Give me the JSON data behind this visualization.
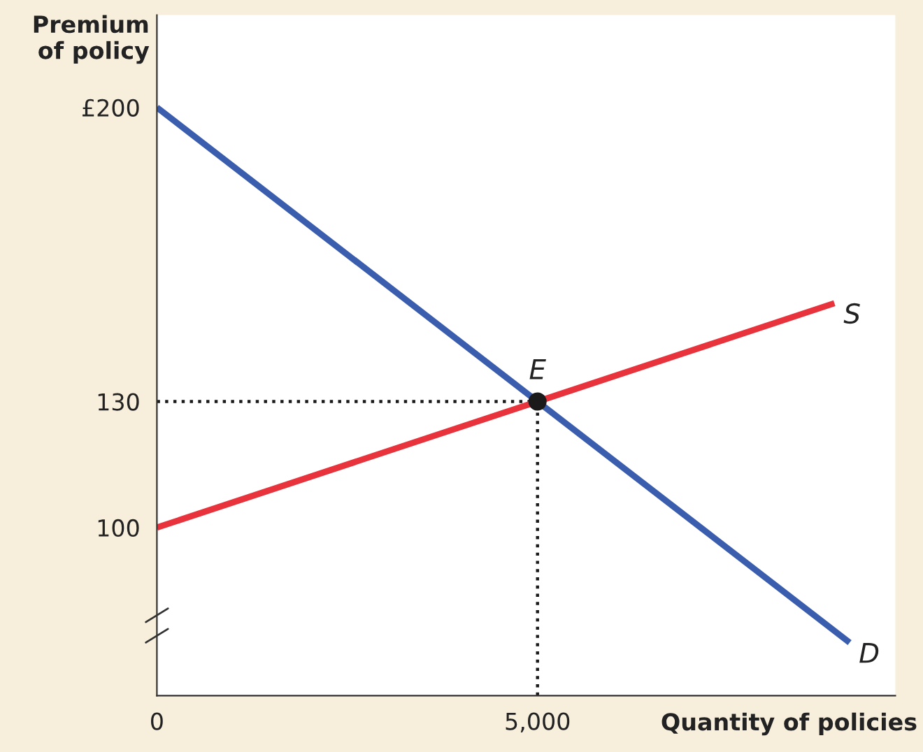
{
  "chart_data": {
    "type": "line",
    "xlabel": "Quantity of policies",
    "ylabel": "Premium\nof policy",
    "xlim": [
      0,
      9700
    ],
    "ylim": [
      60,
      222
    ],
    "xticks": [
      0,
      {
        "value": 5000,
        "label": "5,000"
      }
    ],
    "yticks": [
      100,
      130,
      {
        "value": 200,
        "label": "£200"
      }
    ],
    "series": [
      {
        "name": "D",
        "color": "#3a5dae",
        "x": [
          0,
          9100
        ],
        "values": [
          200,
          72.6
        ]
      },
      {
        "name": "S",
        "color": "#e8323c",
        "x": [
          0,
          8900
        ],
        "values": [
          100,
          153.4
        ]
      },
      {
        "name": "E",
        "type": "scatter",
        "color": "#1a1a1a",
        "x": [
          5000
        ],
        "values": [
          130
        ]
      }
    ],
    "ref_lines": [
      {
        "axis": "x",
        "value": 5000,
        "line_style": "dotted",
        "color": "#1a1a1a"
      },
      {
        "axis": "y",
        "value": 130,
        "line_style": "dotted",
        "color": "#1a1a1a"
      }
    ],
    "grid": false,
    "legend": false
  }
}
